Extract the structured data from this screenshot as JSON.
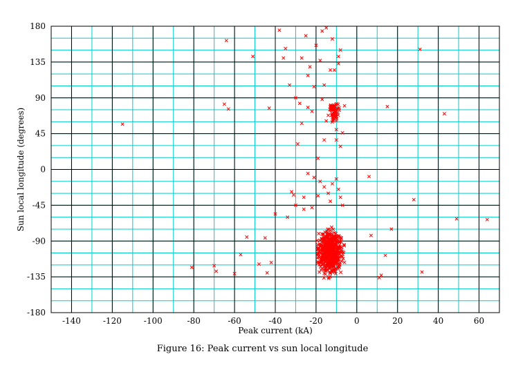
{
  "caption": "Figure 16: Peak current vs sun local longitude",
  "colors": {
    "grid": "#00cccc",
    "frame": "#000000",
    "point": "#ff0000",
    "background": "#ffffff"
  },
  "chart_data": {
    "type": "scatter",
    "title": "",
    "xlabel": "Peak current (kA)",
    "ylabel": "Sun local longitude (degrees)",
    "xlim": [
      -150,
      70
    ],
    "ylim": [
      -180,
      180
    ],
    "x_ticks": [
      -140,
      -120,
      -100,
      -80,
      -60,
      -40,
      -20,
      0,
      20,
      40,
      60
    ],
    "y_ticks": [
      180,
      135,
      90,
      45,
      0,
      -45,
      -90,
      -135,
      -180
    ],
    "x_minor_step": 10,
    "y_minor_step": 15,
    "grid": true,
    "marker": "x",
    "series": [
      {
        "points": [
          [
            -115,
            57
          ],
          [
            -81,
            -123
          ],
          [
            -70,
            -121
          ],
          [
            -69,
            -128
          ],
          [
            -64,
            162
          ],
          [
            -65,
            82
          ],
          [
            -63,
            76
          ],
          [
            -60,
            -131
          ],
          [
            -57,
            -107
          ],
          [
            -54,
            -85
          ],
          [
            -51,
            142
          ],
          [
            -48,
            -119
          ],
          [
            -45,
            -86
          ],
          [
            -43,
            77
          ],
          [
            -44,
            -130
          ],
          [
            -42,
            -117
          ],
          [
            -40,
            -56
          ],
          [
            -38,
            175
          ],
          [
            -36,
            140
          ],
          [
            -35,
            152
          ],
          [
            -33,
            106
          ],
          [
            -32,
            -28
          ],
          [
            -31,
            -32
          ],
          [
            -30,
            90
          ],
          [
            -29,
            32
          ],
          [
            -28,
            83
          ],
          [
            -27,
            58
          ],
          [
            -27,
            140
          ],
          [
            -26,
            -35
          ],
          [
            -25,
            168
          ],
          [
            -24,
            118
          ],
          [
            -24,
            78
          ],
          [
            -23,
            129
          ],
          [
            -22,
            73
          ],
          [
            -21,
            104
          ],
          [
            -20,
            156
          ],
          [
            -19,
            14
          ],
          [
            -18,
            137
          ],
          [
            -17,
            174
          ],
          [
            -17,
            88
          ],
          [
            -16,
            106
          ],
          [
            -16,
            37
          ],
          [
            -15,
            61
          ],
          [
            -15,
            178
          ],
          [
            -14,
            68
          ],
          [
            -13,
            125
          ],
          [
            -12,
            164
          ],
          [
            -11,
            125
          ],
          [
            -10,
            50
          ],
          [
            -10,
            37
          ],
          [
            -9,
            142
          ],
          [
            -9,
            133
          ],
          [
            -8,
            29
          ],
          [
            -8,
            150
          ],
          [
            -7,
            46
          ],
          [
            -6,
            80
          ],
          [
            -24,
            -5
          ],
          [
            -21,
            -10
          ],
          [
            -18,
            -15
          ],
          [
            -16,
            -22
          ],
          [
            -14,
            -30
          ],
          [
            -12,
            -18
          ],
          [
            -10,
            -12
          ],
          [
            -9,
            -25
          ],
          [
            -8,
            -35
          ],
          [
            -7,
            -45
          ],
          [
            -13,
            -40
          ],
          [
            -19,
            -33
          ],
          [
            -22,
            -48
          ],
          [
            -26,
            -50
          ],
          [
            -30,
            -45
          ],
          [
            -34,
            -60
          ],
          [
            6,
            -9
          ],
          [
            7,
            -83
          ],
          [
            11,
            -136
          ],
          [
            12,
            -133
          ],
          [
            14,
            -108
          ],
          [
            15,
            79
          ],
          [
            17,
            -75
          ],
          [
            28,
            -38
          ],
          [
            31,
            151
          ],
          [
            32,
            -129
          ],
          [
            43,
            70
          ],
          [
            49,
            -62
          ],
          [
            64,
            -63
          ]
        ],
        "cluster": {
          "x_center": -13,
          "x_spread": 6,
          "y_center": -105,
          "y_spread": 22,
          "count": 620,
          "upper_x_center": -11,
          "upper_y_center": 80,
          "upper_count": 70
        }
      }
    ]
  }
}
